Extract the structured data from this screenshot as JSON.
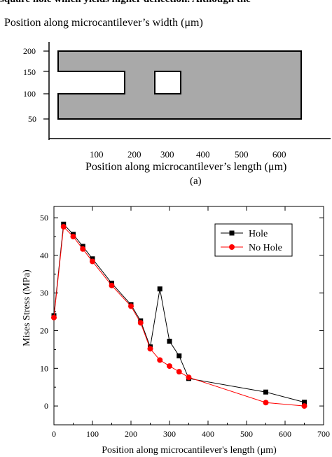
{
  "page": {
    "top_line": "square hole which yields higher deflection. Although the"
  },
  "diagram": {
    "ylabel": "Position along microcantilever’s width (μm)",
    "yticks": [
      "200",
      "150",
      "100",
      "50"
    ],
    "xticks": [
      "100",
      "200",
      "300",
      "400",
      "500",
      "600"
    ],
    "xlabel": "Position along microcantilever’s length (μm)",
    "sublabel": "(a)",
    "colors": {
      "fill": "#a9a9a9",
      "stroke": "#000000"
    }
  },
  "chart_data": {
    "type": "line",
    "title": "",
    "xlabel": "Position along microcantilever's length (μm)",
    "ylabel": "Mises Stress (MPa)",
    "xlim": [
      0,
      700
    ],
    "ylim": [
      -5,
      53
    ],
    "xticks": [
      0,
      100,
      200,
      300,
      400,
      500,
      600,
      700
    ],
    "xtick_labels": [
      "0",
      "100",
      "200",
      "300",
      "400",
      "500",
      "600",
      "700"
    ],
    "yticks": [
      0,
      10,
      20,
      30,
      40,
      50
    ],
    "grid": false,
    "legend": "top-right",
    "series": [
      {
        "name": "Hole",
        "color": "#000000",
        "marker": "square",
        "x": [
          0,
          25,
          50,
          75,
          100,
          150,
          200,
          225,
          250,
          275,
          300,
          325,
          350,
          550,
          650
        ],
        "y": [
          24,
          48.3,
          45.6,
          42.4,
          39.1,
          32.6,
          26.9,
          22.6,
          15.7,
          31.1,
          17.2,
          13.3,
          7.3,
          3.7,
          1
        ]
      },
      {
        "name": "No Hole",
        "color": "#ff0000",
        "marker": "circle",
        "x": [
          0,
          25,
          50,
          75,
          100,
          150,
          200,
          225,
          250,
          275,
          300,
          325,
          350,
          550,
          650
        ],
        "y": [
          23.5,
          47.6,
          45,
          41.7,
          38.4,
          32,
          26.5,
          22.1,
          15.2,
          12.2,
          10.6,
          9.1,
          7.6,
          0.9,
          0
        ]
      }
    ]
  }
}
